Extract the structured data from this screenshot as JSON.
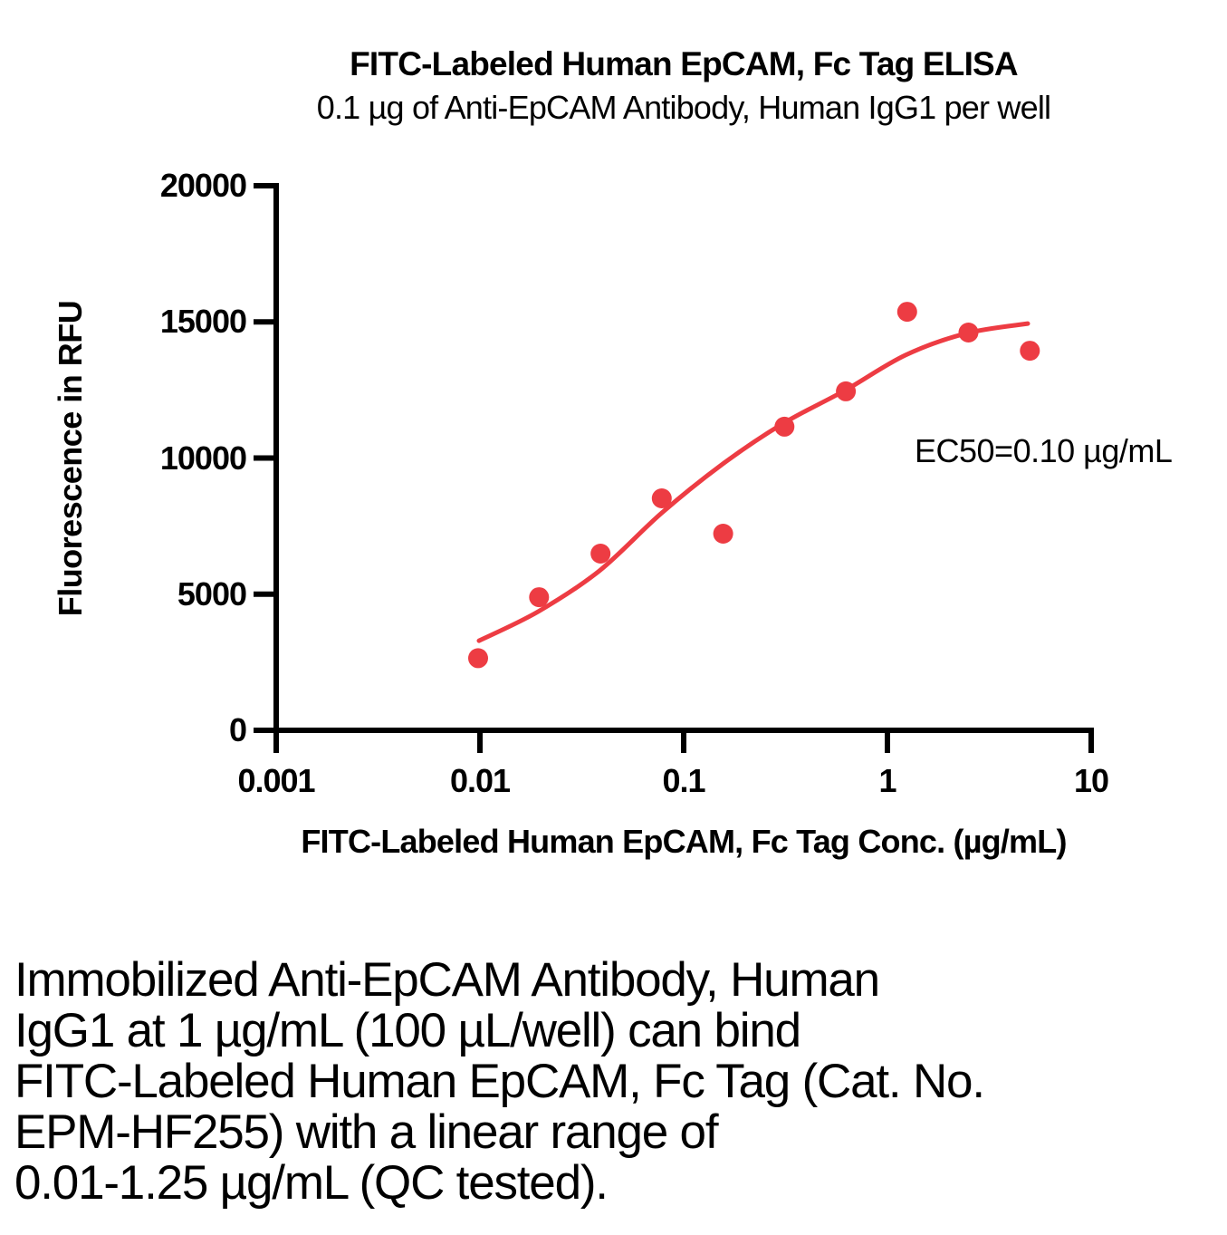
{
  "chart": {
    "title": "FITC-Labeled Human EpCAM, Fc Tag ELISA",
    "subtitle": "0.1 µg of Anti-EpCAM Antibody, Human IgG1 per well",
    "ylabel": "Fluorescence in RFU",
    "xlabel": "FITC-Labeled Human EpCAM, Fc Tag Conc. (µg/mL)",
    "annotation": "EC50=0.10 µg/mL"
  },
  "chart_data": {
    "type": "scatter",
    "title": "FITC-Labeled Human EpCAM, Fc Tag ELISA",
    "subtitle": "0.1 µg of Anti-EpCAM Antibody, Human IgG1 per well",
    "xlabel": "FITC-Labeled Human EpCAM, Fc Tag Conc. (µg/mL)",
    "ylabel": "Fluorescence in RFU",
    "x_scale": "log",
    "xlim": [
      0.001,
      10
    ],
    "ylim": [
      0,
      20000
    ],
    "x_ticks": [
      "0.001",
      "0.01",
      "0.1",
      "1",
      "10"
    ],
    "y_ticks": [
      "0",
      "5000",
      "10000",
      "15000",
      "20000"
    ],
    "grid": false,
    "legend": "none",
    "annotation": "EC50=0.10 µg/mL",
    "ec50_ug_per_ml": 0.1,
    "point_color": "#ED3C43",
    "curve_color": "#ED3C43",
    "axis_color": "#000000",
    "series": [
      {
        "name": "elisa-data-points",
        "type": "scatter",
        "points": [
          [
            0.0098,
            2650
          ],
          [
            0.0195,
            4890
          ],
          [
            0.0391,
            6490
          ],
          [
            0.0781,
            8520
          ],
          [
            0.1563,
            7220
          ],
          [
            0.3125,
            11150
          ],
          [
            0.625,
            12450
          ],
          [
            1.25,
            15370
          ],
          [
            2.5,
            14610
          ],
          [
            5,
            13940
          ]
        ]
      },
      {
        "name": "4pl-fit-curve",
        "type": "line",
        "points": [
          [
            0.0099,
            3290
          ],
          [
            0.0193,
            4360
          ],
          [
            0.0386,
            5860
          ],
          [
            0.0782,
            7990
          ],
          [
            0.1553,
            9780
          ],
          [
            0.3048,
            11250
          ],
          [
            0.618,
            12480
          ],
          [
            1.227,
            13780
          ],
          [
            2.436,
            14580
          ],
          [
            4.886,
            14940
          ]
        ]
      }
    ]
  },
  "caption": {
    "text": "Immobilized Anti-EpCAM Antibody, Human\nIgG1 at 1 µg/mL (100 µL/well) can bind\nFITC-Labeled Human EpCAM, Fc Tag (Cat. No.\nEPM-HF255) with a linear range of\n0.01-1.25 µg/mL (QC tested)."
  }
}
